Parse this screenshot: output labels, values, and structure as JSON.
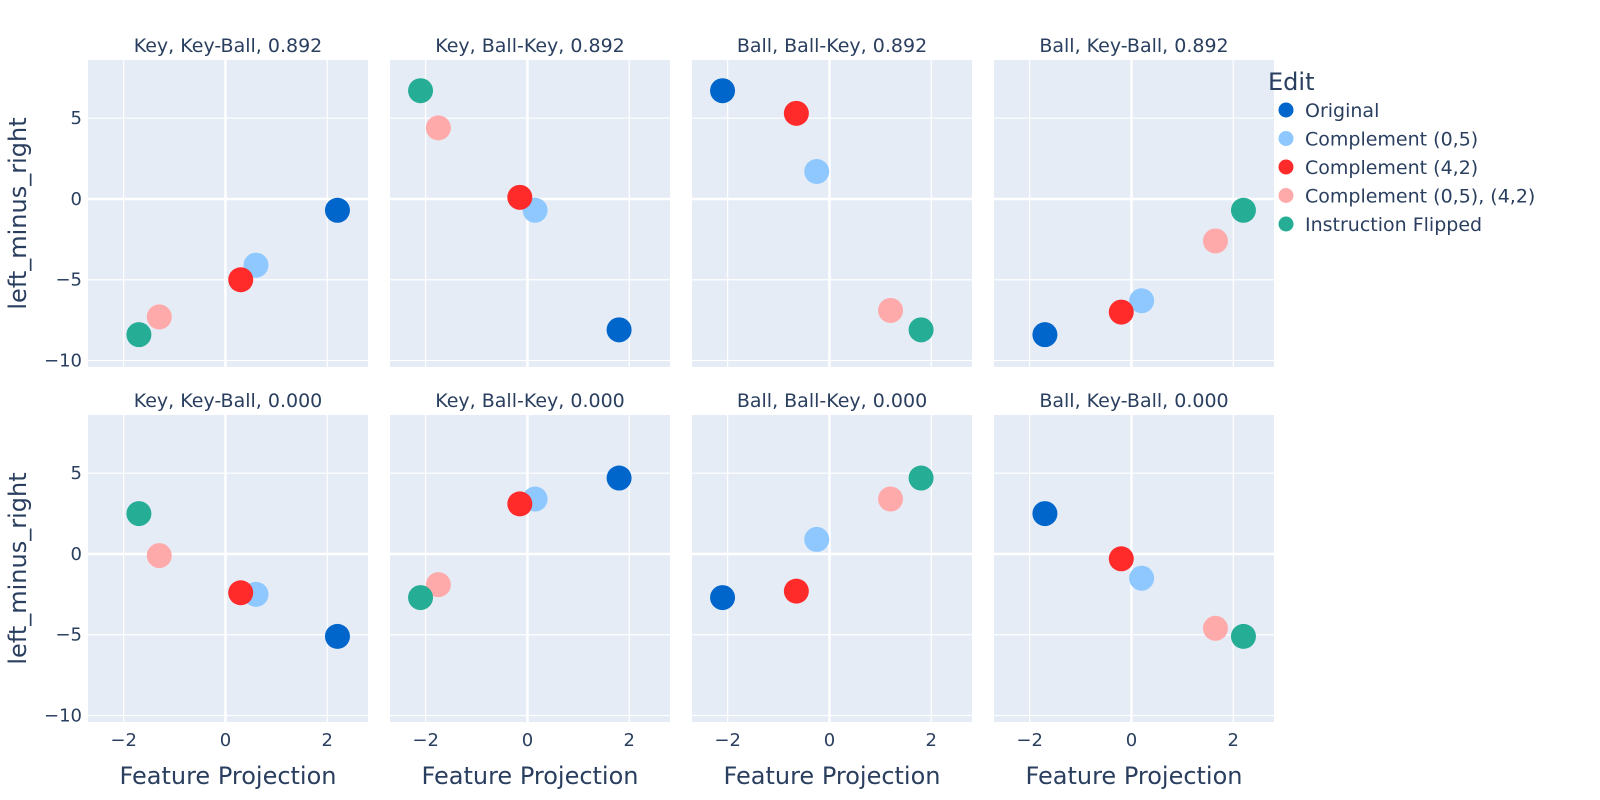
{
  "chart_data": {
    "type": "scatter",
    "layout": "2x4 facet grid",
    "shared_axes": {
      "xlabel": "Feature Projection",
      "ylabel": "left_minus_right",
      "xlim": [
        -2.7,
        2.8
      ],
      "ylim": [
        -10.4,
        8.6
      ],
      "xticks": [
        -2,
        0,
        2
      ],
      "yticks": [
        -10,
        -5,
        0,
        5
      ],
      "grid": true
    },
    "legend": {
      "title": "Edit",
      "placement": "right",
      "entries": [
        {
          "name": "Original",
          "color": "#0066cc"
        },
        {
          "name": "Complement (0,5)",
          "color": "#8ec8ff"
        },
        {
          "name": "Complement (4,2)",
          "color": "#ff2a2a"
        },
        {
          "name": "Complement (0,5), (4,2)",
          "color": "#ffaaaa"
        },
        {
          "name": "Instruction Flipped",
          "color": "#26ad96"
        }
      ]
    },
    "panels": [
      {
        "title": "Key, Key-Ball, 0.892",
        "row": 0,
        "col": 0,
        "points": [
          [
            2.2,
            -0.7
          ],
          [
            0.6,
            -4.1
          ],
          [
            0.3,
            -5.0
          ],
          [
            -1.3,
            -7.3
          ],
          [
            -1.7,
            -8.4
          ]
        ]
      },
      {
        "title": "Key, Ball-Key, 0.892",
        "row": 0,
        "col": 1,
        "points": [
          [
            1.8,
            -8.1
          ],
          [
            0.15,
            -0.7
          ],
          [
            -0.15,
            0.1
          ],
          [
            -1.75,
            4.4
          ],
          [
            -2.1,
            6.7
          ]
        ]
      },
      {
        "title": "Ball, Ball-Key, 0.892",
        "row": 0,
        "col": 2,
        "points": [
          [
            -2.1,
            6.7
          ],
          [
            -0.25,
            1.7
          ],
          [
            -0.65,
            5.3
          ],
          [
            1.2,
            -6.9
          ],
          [
            1.8,
            -8.1
          ]
        ]
      },
      {
        "title": "Ball, Key-Ball, 0.892",
        "row": 0,
        "col": 3,
        "points": [
          [
            -1.7,
            -8.4
          ],
          [
            0.2,
            -6.3
          ],
          [
            -0.2,
            -7.0
          ],
          [
            1.65,
            -2.6
          ],
          [
            2.2,
            -0.7
          ]
        ]
      },
      {
        "title": "Key, Key-Ball, 0.000",
        "row": 1,
        "col": 0,
        "points": [
          [
            2.2,
            -5.1
          ],
          [
            0.6,
            -2.5
          ],
          [
            0.3,
            -2.4
          ],
          [
            -1.3,
            -0.1
          ],
          [
            -1.7,
            2.5
          ]
        ]
      },
      {
        "title": "Key, Ball-Key, 0.000",
        "row": 1,
        "col": 1,
        "points": [
          [
            1.8,
            4.7
          ],
          [
            0.15,
            3.4
          ],
          [
            -0.15,
            3.1
          ],
          [
            -1.75,
            -1.9
          ],
          [
            -2.1,
            -2.7
          ]
        ]
      },
      {
        "title": "Ball, Ball-Key, 0.000",
        "row": 1,
        "col": 2,
        "points": [
          [
            -2.1,
            -2.7
          ],
          [
            -0.25,
            0.9
          ],
          [
            -0.65,
            -2.3
          ],
          [
            1.2,
            3.4
          ],
          [
            1.8,
            4.7
          ]
        ]
      },
      {
        "title": "Ball, Key-Ball, 0.000",
        "row": 1,
        "col": 3,
        "points": [
          [
            -1.7,
            2.5
          ],
          [
            0.2,
            -1.5
          ],
          [
            -0.2,
            -0.3
          ],
          [
            1.65,
            -4.6
          ],
          [
            2.2,
            -5.1
          ]
        ]
      }
    ]
  }
}
